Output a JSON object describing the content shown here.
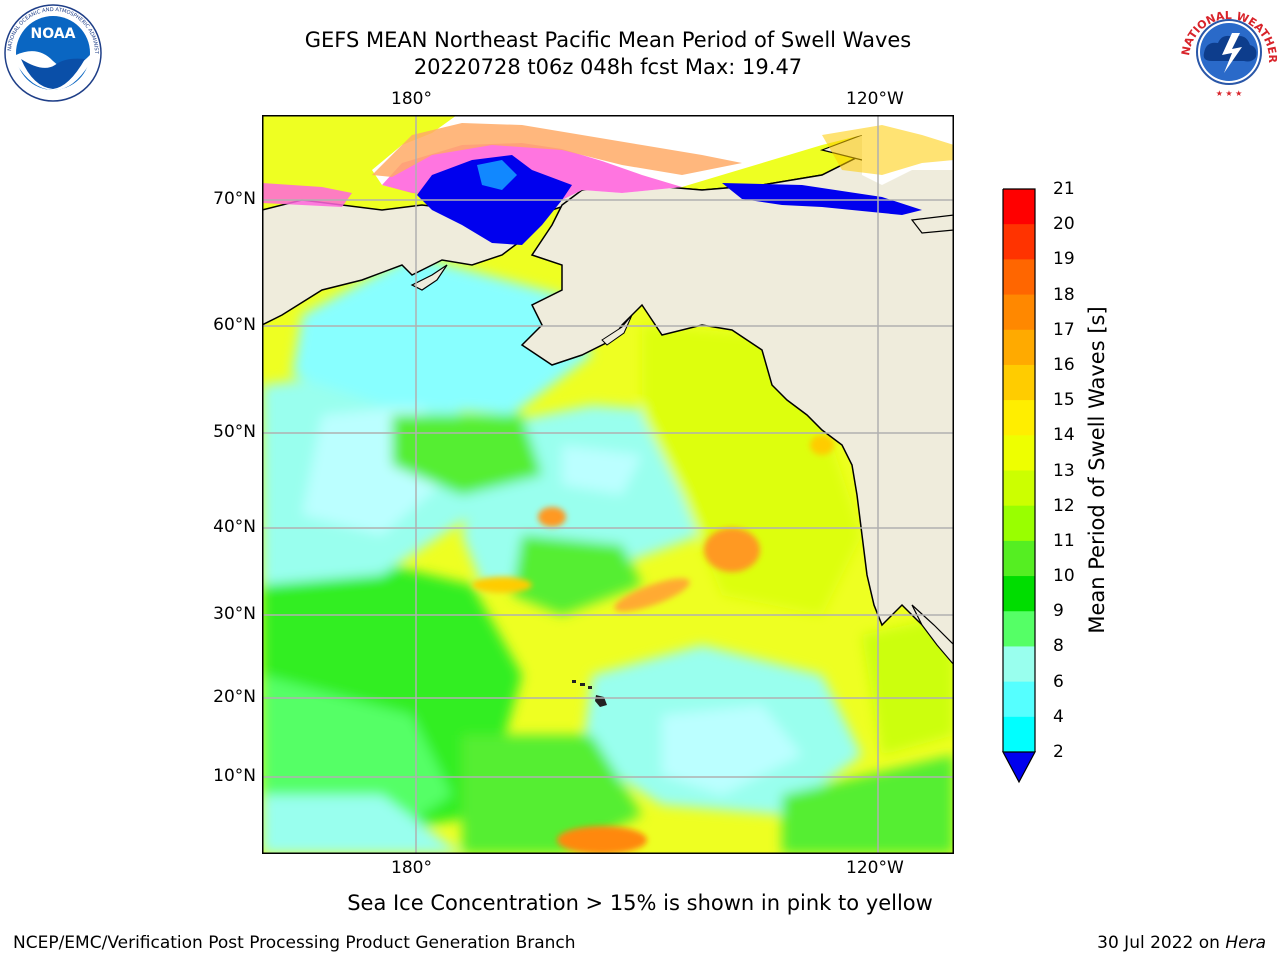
{
  "header": {
    "title_line1": "GEFS MEAN Northeast Pacific Mean Period of Swell Waves",
    "title_line2": "20220728 t06z 048h fcst   Max: 19.47"
  },
  "logos": {
    "left": "NOAA",
    "left_ring_text": "NATIONAL OCEANIC AND ATMOSPHERIC ADMINISTRATION · U.S. DEPARTMENT OF COMMERCE",
    "right_ring_text": "NATIONAL WEATHER SERVICE"
  },
  "map": {
    "lon_labels_top": [
      "180°",
      "120°W"
    ],
    "lon_labels_bottom": [
      "180°",
      "120°W"
    ],
    "lat_labels": [
      "70°N",
      "60°N",
      "50°N",
      "40°N",
      "30°N",
      "20°N",
      "10°N"
    ],
    "land_color": "#efecdc",
    "grid_color": "#b0b0b0"
  },
  "colorbar": {
    "label": "Mean Period of Swell Waves [s]",
    "ticks": [
      "21",
      "20",
      "19",
      "18",
      "17",
      "16",
      "15",
      "14",
      "13",
      "12",
      "11",
      "10",
      "9",
      "8",
      "6",
      "4",
      "2"
    ],
    "colors": [
      "#ff0000",
      "#ff3300",
      "#ff6600",
      "#ff8800",
      "#ffaa00",
      "#ffcc00",
      "#ffee00",
      "#eeff00",
      "#ccff00",
      "#99ff00",
      "#55ee22",
      "#00dd00",
      "#55ff66",
      "#99ffee",
      "#55ffff",
      "#00ffff",
      "#00aaff",
      "#0000ff"
    ],
    "under_color": "#0000ee"
  },
  "footer": {
    "note": "Sea Ice Concentration > 15% is shown in pink to yellow",
    "left": "NCEP/EMC/Verification Post Processing Product Generation Branch",
    "right_date": "30 Jul 2022 on ",
    "right_host": "Hera"
  }
}
